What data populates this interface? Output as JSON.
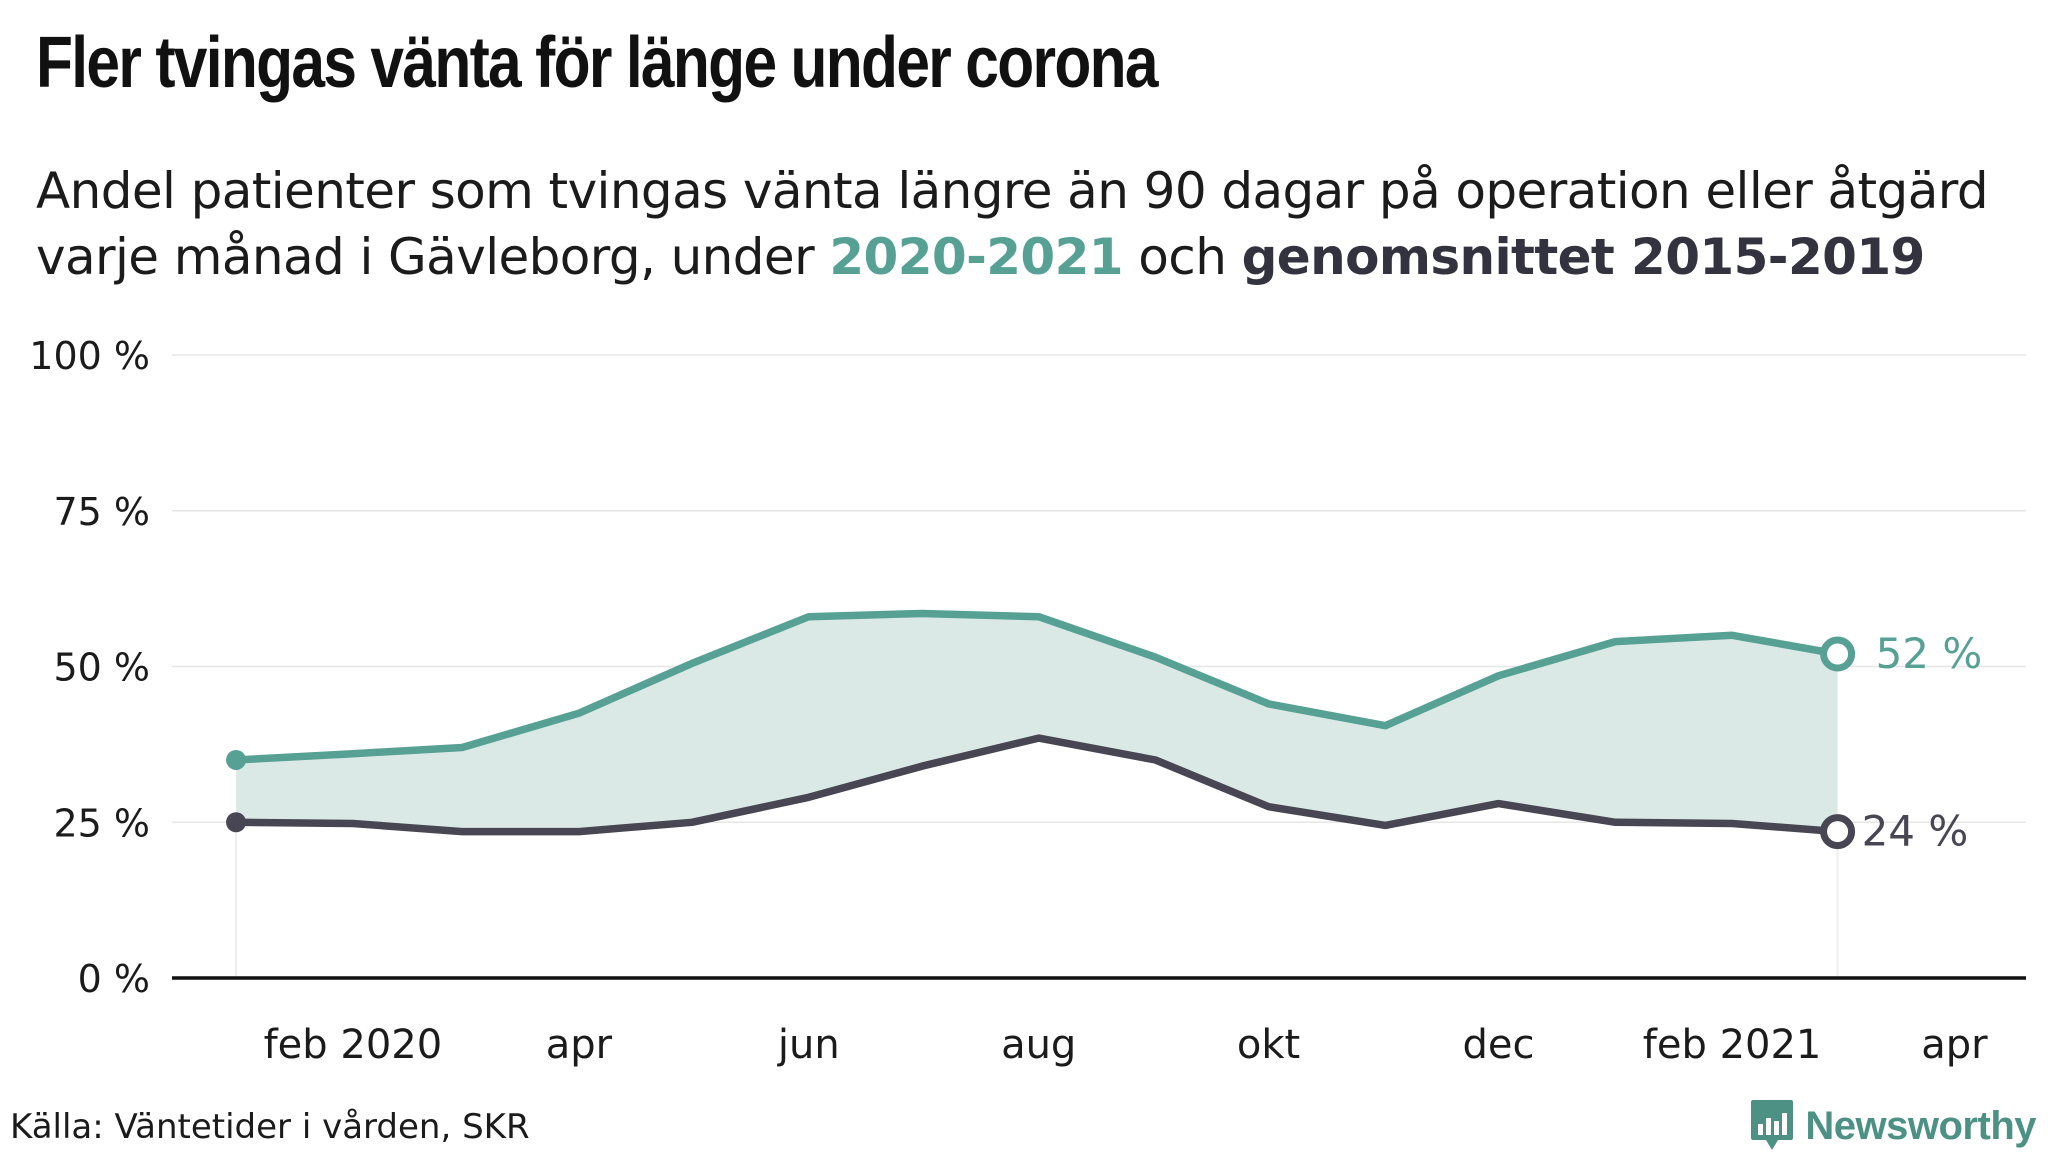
{
  "header": {
    "title": "Fler tvingas vänta för länge under corona",
    "subtitle_line1": "Andel patienter som tvingas vänta längre än 90 dagar på operation eller åtgärd",
    "subtitle_line2_prefix": "varje månad i Gävleborg, under ",
    "subtitle_highlight_current": "2020-2021",
    "subtitle_mid": " och ",
    "subtitle_highlight_average": "genomsnittet 2015-2019"
  },
  "footer": {
    "source": "Källa: Väntetider i vården, SKR",
    "brand": "Newsworthy"
  },
  "colors": {
    "current": "#57a194",
    "average": "#474652",
    "band_fill": "#dbe9e6",
    "grid": "#e6e6e6",
    "axis": "#111111",
    "brand": "#4c9184"
  },
  "chart_data": {
    "type": "line",
    "x": [
      "2020-01",
      "2020-02",
      "2020-03",
      "2020-04",
      "2020-05",
      "2020-06",
      "2020-07",
      "2020-08",
      "2020-09",
      "2020-10",
      "2020-11",
      "2020-12",
      "2021-01",
      "2021-02",
      "2021-03"
    ],
    "x_tick_labels": [
      "feb 2020",
      "apr",
      "jun",
      "aug",
      "okt",
      "dec",
      "feb 2021",
      "apr"
    ],
    "x_tick_dates": [
      "2020-02",
      "2020-04",
      "2020-06",
      "2020-08",
      "2020-10",
      "2020-12",
      "2021-02",
      "2021-04"
    ],
    "xlim": [
      "2019-12-15",
      "2021-04-20"
    ],
    "y_ticks": [
      0,
      25,
      50,
      75,
      100
    ],
    "y_tick_labels": [
      "0 %",
      "25 %",
      "50 %",
      "75 %",
      "100 %"
    ],
    "ylim": [
      0,
      100
    ],
    "grid": true,
    "shaded_between_series": true,
    "series": [
      {
        "name": "2020-2021",
        "values": [
          35,
          36,
          37,
          42.5,
          50.5,
          58,
          58.5,
          58,
          51.5,
          44,
          40.5,
          48.5,
          54,
          55,
          52
        ],
        "end_label": "52 %"
      },
      {
        "name": "genomsnittet 2015-2019",
        "values": [
          25,
          24.8,
          23.5,
          23.5,
          25,
          29,
          34,
          38.5,
          35,
          27.5,
          24.5,
          28,
          25,
          24.8,
          23.5
        ],
        "end_label": "24 %"
      }
    ]
  }
}
